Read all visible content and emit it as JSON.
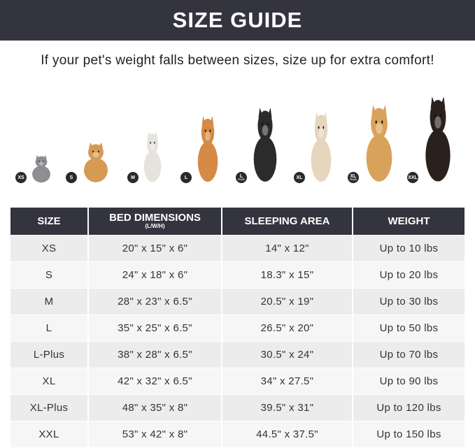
{
  "title": "SIZE GUIDE",
  "subtitle": "If your pet's weight falls between sizes, size up for extra comfort!",
  "pets": [
    {
      "badge": "XS",
      "badge_sub": "",
      "animal": "cat",
      "color": "#8d8d92"
    },
    {
      "badge": "S",
      "badge_sub": "",
      "animal": "pomeranian",
      "color": "#d69a55"
    },
    {
      "badge": "M",
      "badge_sub": "",
      "animal": "french-bulldog",
      "color": "#e6e2dc"
    },
    {
      "badge": "L",
      "badge_sub": "",
      "animal": "shiba-inu",
      "color": "#d58a45"
    },
    {
      "badge": "L",
      "badge_sub": "PLUS",
      "animal": "border-collie",
      "color": "#2b2b2b"
    },
    {
      "badge": "XL",
      "badge_sub": "",
      "animal": "labrador",
      "color": "#e5d6bd"
    },
    {
      "badge": "XL",
      "badge_sub": "PLUS",
      "animal": "golden-retriever",
      "color": "#d9a25a"
    },
    {
      "badge": "XXL",
      "badge_sub": "",
      "animal": "doberman",
      "color": "#2a211c"
    }
  ],
  "table": {
    "headers": [
      "SIZE",
      "BED DIMENSIONS",
      "SLEEPING AREA",
      "WEIGHT"
    ],
    "header_note": "(L/W/H)",
    "rows": [
      [
        "XS",
        "20\" x 15\" x 6\"",
        "14\" x 12\"",
        "Up to 10 lbs"
      ],
      [
        "S",
        "24\" x 18\" x 6\"",
        "18.3\" x 15\"",
        "Up to 20 lbs"
      ],
      [
        "M",
        "28\" x 23\" x 6.5\"",
        "20.5\" x 19\"",
        "Up to 30 lbs"
      ],
      [
        "L",
        "35\" x 25\" x 6.5\"",
        "26.5\" x 20\"",
        "Up to 50 lbs"
      ],
      [
        "L-Plus",
        "38\" x 28\" x 6.5\"",
        "30.5\" x 24\"",
        "Up to 70 lbs"
      ],
      [
        "XL",
        "42\" x 32\" x 6.5\"",
        "34\" x 27.5\"",
        "Up to 90 lbs"
      ],
      [
        "XL-Plus",
        "48\" x 35\" x 8\"",
        "39.5\" x 31\"",
        "Up to 120 lbs"
      ],
      [
        "XXL",
        "53\" x 42\" x 8\"",
        "44.5\" x 37.5\"",
        "Up to 150 lbs"
      ]
    ]
  },
  "colors": {
    "banner": "#34343f",
    "row_odd": "#ececec",
    "row_even": "#f6f6f6"
  }
}
